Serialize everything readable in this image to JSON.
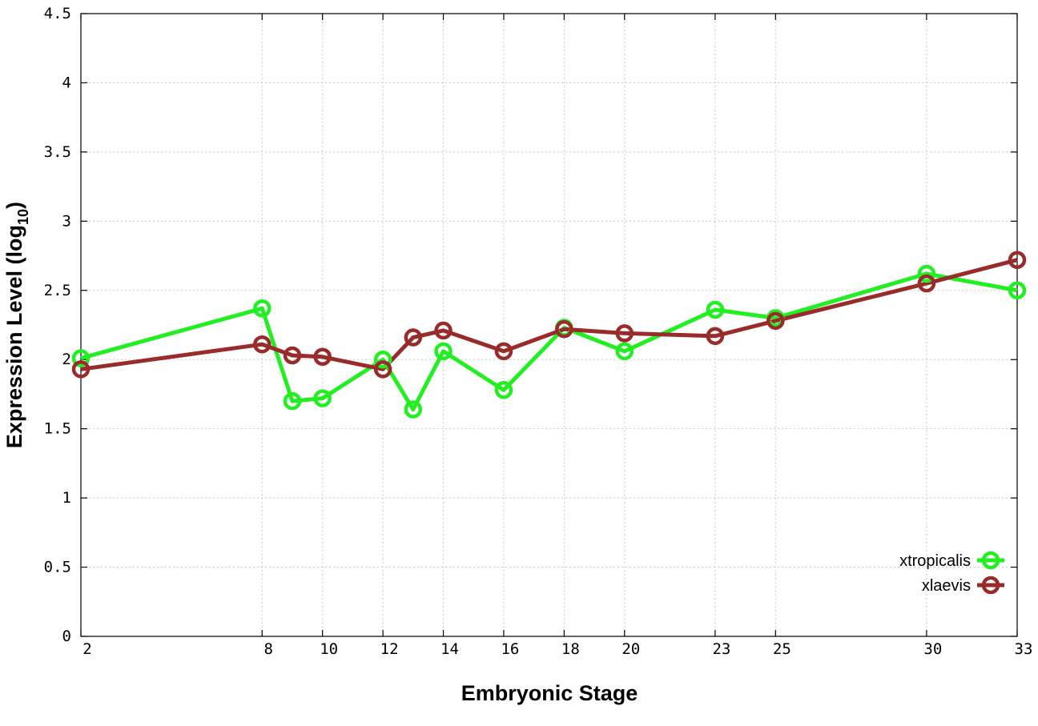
{
  "chart_data": {
    "type": "line",
    "x": [
      2,
      8,
      9,
      10,
      12,
      13,
      14,
      16,
      18,
      20,
      23,
      25,
      30,
      33
    ],
    "x_tick_labels": [
      "2",
      "8",
      "10",
      "12",
      "14",
      "16",
      "18",
      "20",
      "23",
      "25",
      "30",
      "33"
    ],
    "x_tick_values": [
      2,
      8,
      10,
      12,
      14,
      16,
      18,
      20,
      23,
      25,
      30,
      33
    ],
    "y_tick_labels": [
      "0",
      "0.5",
      "1",
      "1.5",
      "2",
      "2.5",
      "3",
      "3.5",
      "4",
      "4.5"
    ],
    "y_tick_values": [
      0,
      0.5,
      1,
      1.5,
      2,
      2.5,
      3,
      3.5,
      4,
      4.5
    ],
    "xlim": [
      2,
      33
    ],
    "ylim": [
      0,
      4.5
    ],
    "xlabel": "Embryonic Stage",
    "ylabel_main": "Expression Level (log",
    "ylabel_sub": "10",
    "ylabel_end": ")",
    "grid": true,
    "legend_position": "bottom-right",
    "series": [
      {
        "name": "xtropicalis",
        "color": "#22ee22",
        "values": [
          2.01,
          2.37,
          1.7,
          1.72,
          2.0,
          1.64,
          2.06,
          1.78,
          2.23,
          2.06,
          2.36,
          2.3,
          2.62,
          2.5
        ]
      },
      {
        "name": "xlaevis",
        "color": "#992b2b",
        "values": [
          1.93,
          2.11,
          2.03,
          2.02,
          1.93,
          2.16,
          2.21,
          2.06,
          2.22,
          2.19,
          2.17,
          2.28,
          2.55,
          2.72
        ]
      }
    ]
  }
}
